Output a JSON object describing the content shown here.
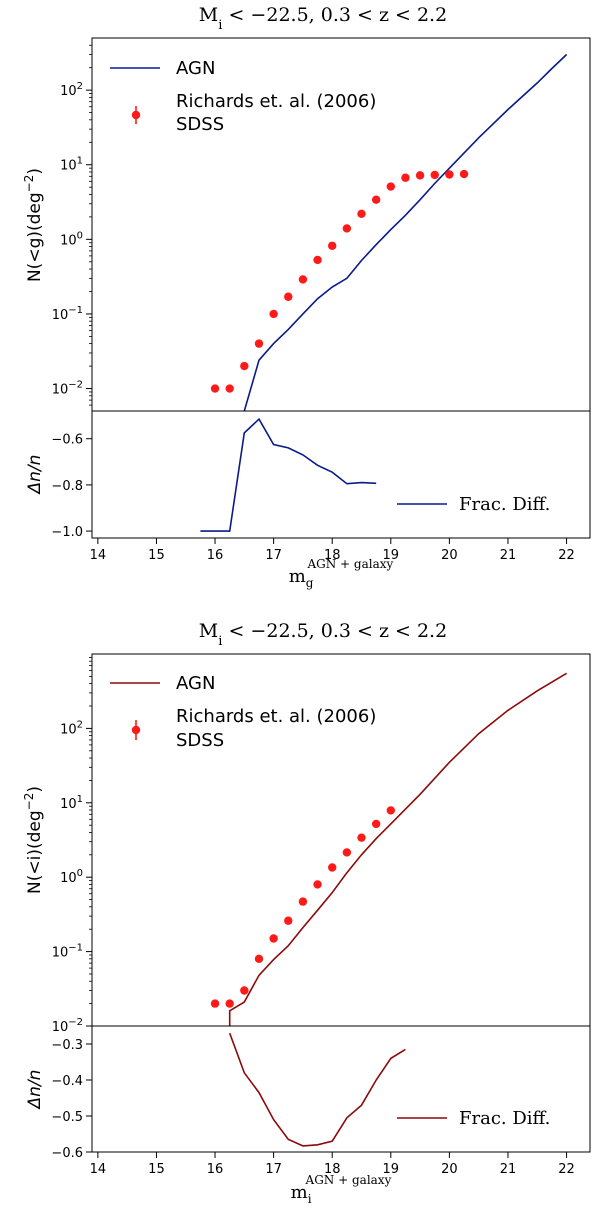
{
  "chart_data": [
    {
      "type": "line",
      "panel": "main",
      "title": "M_i < −22.5, 0.3 < z < 2.2",
      "ylabel": "N(<g)(deg^-2)",
      "yscale": "log",
      "xlim": [
        13.9,
        22.4
      ],
      "ylim": [
        0.005,
        500
      ],
      "xticks": [
        14,
        15,
        16,
        17,
        18,
        19,
        20,
        21,
        22
      ],
      "yticks": [
        0.01,
        0.1,
        1,
        10,
        100
      ],
      "ytick_labels": [
        "10^-2",
        "10^-1",
        "10^0",
        "10^1",
        "10^2"
      ],
      "legend_placement": "upper-left",
      "line_color": "#0a1a8c",
      "point_color": "#ff1a1a",
      "series": [
        {
          "name": "AGN",
          "kind": "line",
          "x": [
            16.5,
            16.75,
            17.0,
            17.25,
            17.5,
            17.75,
            18.0,
            18.25,
            18.5,
            18.75,
            19.0,
            19.25,
            19.5,
            19.75,
            20.0,
            20.5,
            21.0,
            21.5,
            21.75,
            22.0
          ],
          "y": [
            0.005,
            0.024,
            0.04,
            0.062,
            0.1,
            0.16,
            0.23,
            0.3,
            0.52,
            0.85,
            1.35,
            2.1,
            3.4,
            5.6,
            9.0,
            23,
            55,
            125,
            195,
            300
          ]
        },
        {
          "name": "Richards et. al. (2006)\nSDSS",
          "kind": "scatter",
          "x": [
            16.0,
            16.25,
            16.5,
            16.75,
            17.0,
            17.25,
            17.5,
            17.75,
            18.0,
            18.25,
            18.5,
            18.75,
            19.0,
            19.25,
            19.5,
            19.75,
            20.0,
            20.25
          ],
          "y": [
            0.01,
            0.01,
            0.02,
            0.04,
            0.1,
            0.17,
            0.29,
            0.53,
            0.82,
            1.4,
            2.2,
            3.4,
            5.1,
            6.7,
            7.2,
            7.3,
            7.4,
            7.5
          ]
        }
      ]
    },
    {
      "type": "line",
      "panel": "residual",
      "xlabel": "m_g^{AGN+galaxy}",
      "ylabel": "Δn/n",
      "xlim": [
        13.9,
        22.4
      ],
      "ylim": [
        -1.03,
        -0.48
      ],
      "xticks": [
        14,
        15,
        16,
        17,
        18,
        19,
        20,
        21,
        22
      ],
      "yticks": [
        -1.0,
        -0.8,
        -0.6
      ],
      "ytick_labels": [
        "−1.0",
        "−0.8",
        "−0.6"
      ],
      "legend_placement": "lower-right",
      "line_color": "#0a1a8c",
      "series": [
        {
          "name": "Frac. Diff.",
          "kind": "line",
          "x": [
            15.75,
            16.25,
            16.5,
            16.75,
            17.0,
            17.25,
            17.5,
            17.75,
            18.0,
            18.25,
            18.5,
            18.75
          ],
          "y": [
            -1.0,
            -1.0,
            -0.575,
            -0.515,
            -0.625,
            -0.64,
            -0.67,
            -0.715,
            -0.745,
            -0.795,
            -0.79,
            -0.793
          ]
        }
      ]
    },
    {
      "type": "line",
      "panel": "main",
      "title": "M_i < −22.5, 0.3 < z < 2.2",
      "ylabel": "N(<i)(deg^-2)",
      "yscale": "log",
      "xlim": [
        13.9,
        22.4
      ],
      "ylim": [
        0.01,
        1000
      ],
      "xticks": [
        14,
        15,
        16,
        17,
        18,
        19,
        20,
        21,
        22
      ],
      "yticks": [
        0.01,
        0.1,
        1,
        10,
        100
      ],
      "ytick_labels": [
        "10^-2",
        "10^-1",
        "10^0",
        "10^1",
        "10^2"
      ],
      "legend_placement": "upper-left",
      "line_color": "#8b0a0a",
      "point_color": "#ff1a1a",
      "series": [
        {
          "name": "AGN",
          "kind": "line",
          "x": [
            16.25,
            16.25,
            16.5,
            16.75,
            17.0,
            17.25,
            17.5,
            17.75,
            18.0,
            18.25,
            18.5,
            18.75,
            19.0,
            19.5,
            20.0,
            20.5,
            21.0,
            21.5,
            22.0
          ],
          "y": [
            0.01,
            0.016,
            0.021,
            0.048,
            0.078,
            0.12,
            0.21,
            0.36,
            0.62,
            1.15,
            2.0,
            3.3,
            5.2,
            13,
            35,
            85,
            175,
            320,
            550
          ]
        },
        {
          "name": "Richards et. al. (2006)\nSDSS",
          "kind": "scatter",
          "x": [
            16.0,
            16.25,
            16.5,
            16.75,
            17.0,
            17.25,
            17.5,
            17.75,
            18.0,
            18.25,
            18.5,
            18.75,
            19.0
          ],
          "y": [
            0.02,
            0.02,
            0.03,
            0.08,
            0.15,
            0.26,
            0.47,
            0.8,
            1.35,
            2.15,
            3.4,
            5.2,
            7.9
          ]
        }
      ]
    },
    {
      "type": "line",
      "panel": "residual",
      "xlabel": "m_i^{AGN+galaxy}",
      "ylabel": "Δn/n",
      "xlim": [
        13.9,
        22.4
      ],
      "ylim": [
        -0.6,
        -0.25
      ],
      "xticks": [
        14,
        15,
        16,
        17,
        18,
        19,
        20,
        21,
        22
      ],
      "yticks": [
        -0.6,
        -0.5,
        -0.4,
        -0.3
      ],
      "ytick_labels": [
        "−0.6",
        "−0.5",
        "−0.4",
        "−0.3"
      ],
      "legend_placement": "lower-right",
      "line_color": "#8b0a0a",
      "series": [
        {
          "name": "Frac. Diff.",
          "kind": "line",
          "x": [
            16.25,
            16.5,
            16.75,
            17.0,
            17.25,
            17.5,
            17.75,
            18.0,
            18.25,
            18.5,
            18.75,
            19.0,
            19.25
          ],
          "y": [
            -0.27,
            -0.38,
            -0.435,
            -0.51,
            -0.565,
            -0.583,
            -0.58,
            -0.57,
            -0.505,
            -0.47,
            -0.4,
            -0.34,
            -0.315
          ]
        }
      ]
    }
  ],
  "figure": {
    "top_title": {
      "M": "M",
      "sub": "i",
      "rest": " < −22.5, 0.3 < z < 2.2"
    },
    "bottom_title": {
      "M": "M",
      "sub": "i",
      "rest": " < −22.5, 0.3 < z < 2.2"
    },
    "top_xlabel": {
      "base": "m",
      "sub": "g",
      "sup": "AGN + galaxy"
    },
    "bottom_xlabel": {
      "base": "m",
      "sub": "i",
      "sup": "AGN + galaxy"
    },
    "top_ylabel": {
      "pre": "N(",
      "var": "<g",
      "post": ")(deg",
      "sup": "−2",
      "close": ")"
    },
    "bottom_ylabel": {
      "pre": "N(",
      "var": "<i",
      "post": ")(deg",
      "sup": "−2",
      "close": ")"
    },
    "residual_ylabel": "Δn/n",
    "legend_agn": "AGN",
    "legend_richards_1": "Richards et. al. (2006)",
    "legend_richards_2": "SDSS",
    "legend_frac": "Frac. Diff.",
    "tick_10": "10",
    "tick_exps": [
      "−2",
      "−1",
      "0",
      "1",
      "2"
    ]
  }
}
